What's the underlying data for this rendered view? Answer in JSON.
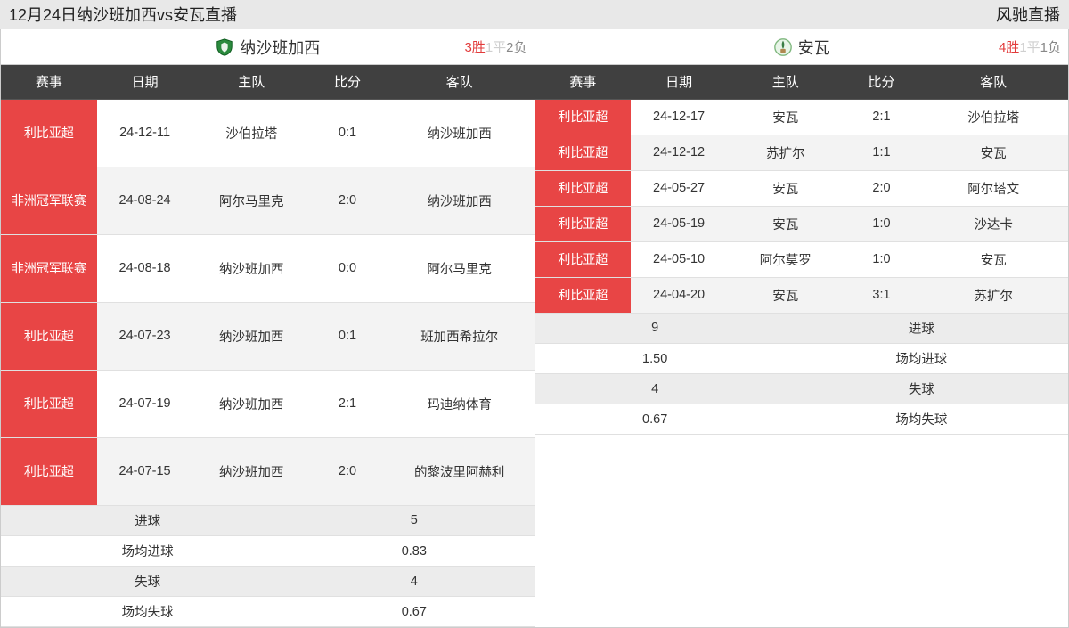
{
  "topbar": {
    "title_left": "12月24日纳沙班加西vs安瓦直播",
    "title_right": "风驰直播"
  },
  "columns_headers": {
    "comp": "赛事",
    "date": "日期",
    "home": "主队",
    "score": "比分",
    "away": "客队"
  },
  "left": {
    "team_name": "纳沙班加西",
    "record": {
      "w": "3胜",
      "d": "1平",
      "l": "2负"
    },
    "badge_bg": "#2b8a3e",
    "rows": [
      {
        "comp": "利比亚超",
        "date": "24-12-11",
        "home": "沙伯拉塔",
        "score": "0:1",
        "away": "纳沙班加西"
      },
      {
        "comp": "非洲冠军联赛",
        "date": "24-08-24",
        "home": "阿尔马里克",
        "score": "2:0",
        "away": "纳沙班加西"
      },
      {
        "comp": "非洲冠军联赛",
        "date": "24-08-18",
        "home": "纳沙班加西",
        "score": "0:0",
        "away": "阿尔马里克"
      },
      {
        "comp": "利比亚超",
        "date": "24-07-23",
        "home": "纳沙班加西",
        "score": "0:1",
        "away": "班加西希拉尔"
      },
      {
        "comp": "利比亚超",
        "date": "24-07-19",
        "home": "纳沙班加西",
        "score": "2:1",
        "away": "玛迪纳体育"
      },
      {
        "comp": "利比亚超",
        "date": "24-07-15",
        "home": "纳沙班加西",
        "score": "2:0",
        "away": "的黎波里阿赫利"
      }
    ],
    "stats": [
      {
        "label": "进球",
        "value": "5"
      },
      {
        "label": "场均进球",
        "value": "0.83"
      },
      {
        "label": "失球",
        "value": "4"
      },
      {
        "label": "场均失球",
        "value": "0.67"
      }
    ]
  },
  "right": {
    "team_name": "安瓦",
    "record": {
      "w": "4胜",
      "d": "1平",
      "l": "1负"
    },
    "badge_bg": "#7fb77e",
    "rows": [
      {
        "comp": "利比亚超",
        "date": "24-12-17",
        "home": "安瓦",
        "score": "2:1",
        "away": "沙伯拉塔"
      },
      {
        "comp": "利比亚超",
        "date": "24-12-12",
        "home": "苏扩尔",
        "score": "1:1",
        "away": "安瓦"
      },
      {
        "comp": "利比亚超",
        "date": "24-05-27",
        "home": "安瓦",
        "score": "2:0",
        "away": "阿尔塔文"
      },
      {
        "comp": "利比亚超",
        "date": "24-05-19",
        "home": "安瓦",
        "score": "1:0",
        "away": "沙达卡"
      },
      {
        "comp": "利比亚超",
        "date": "24-05-10",
        "home": "阿尔莫罗",
        "score": "1:0",
        "away": "安瓦"
      },
      {
        "comp": "利比亚超",
        "date": "24-04-20",
        "home": "安瓦",
        "score": "3:1",
        "away": "苏扩尔"
      }
    ],
    "stats": [
      {
        "label": "进球",
        "value": "9"
      },
      {
        "label": "场均进球",
        "value": "1.50"
      },
      {
        "label": "失球",
        "value": "4"
      },
      {
        "label": "场均失球",
        "value": "0.67"
      }
    ]
  }
}
